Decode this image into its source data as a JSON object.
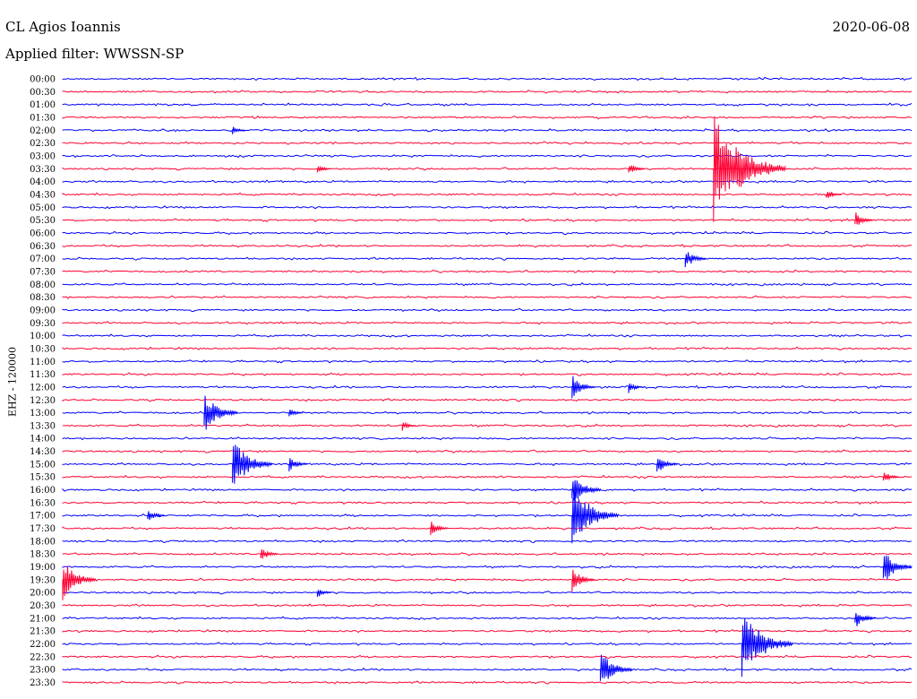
{
  "header": {
    "station": "CL Agios Ioannis",
    "filter": "Applied filter: WWSSN-SP",
    "date": "2020-06-08",
    "channel": "EHZ - 120000"
  },
  "colors": {
    "blue": "#0000ff",
    "red": "#ff0033"
  },
  "chart_data": {
    "type": "line",
    "title": "CL Agios Ioannis",
    "subtitle": "Applied filter: WWSSN-SP",
    "date": "2020-06-08",
    "ylabel": "EHZ - 120000",
    "xlabel": "",
    "series_colors_alternate": [
      "blue",
      "red"
    ],
    "rows": [
      "00:00",
      "00:30",
      "01:00",
      "01:30",
      "02:00",
      "02:30",
      "03:00",
      "03:30",
      "04:00",
      "04:30",
      "05:00",
      "05:30",
      "06:00",
      "06:30",
      "07:00",
      "07:30",
      "08:00",
      "08:30",
      "09:00",
      "09:30",
      "10:00",
      "10:30",
      "11:00",
      "11:30",
      "12:00",
      "12:30",
      "13:00",
      "13:30",
      "14:00",
      "14:30",
      "15:00",
      "15:30",
      "16:00",
      "16:30",
      "17:00",
      "17:30",
      "18:00",
      "18:30",
      "19:00",
      "19:30",
      "20:00",
      "20:30",
      "21:00",
      "21:30",
      "22:00",
      "22:30",
      "23:00",
      "23:30"
    ],
    "events": [
      {
        "row": 4,
        "minute": 6,
        "amp": 5
      },
      {
        "row": 7,
        "minute": 9,
        "amp": 6
      },
      {
        "row": 7,
        "minute": 20,
        "amp": 8
      },
      {
        "row": 7,
        "minute": 23,
        "amp": 60
      },
      {
        "row": 9,
        "minute": 27,
        "amp": 7
      },
      {
        "row": 11,
        "minute": 28,
        "amp": 10
      },
      {
        "row": 14,
        "minute": 22,
        "amp": 12
      },
      {
        "row": 24,
        "minute": 18,
        "amp": 14
      },
      {
        "row": 24,
        "minute": 20,
        "amp": 7
      },
      {
        "row": 26,
        "minute": 5,
        "amp": 24
      },
      {
        "row": 26,
        "minute": 8,
        "amp": 6
      },
      {
        "row": 27,
        "minute": 12,
        "amp": 6
      },
      {
        "row": 30,
        "minute": 6,
        "amp": 30
      },
      {
        "row": 30,
        "minute": 8,
        "amp": 10
      },
      {
        "row": 30,
        "minute": 21,
        "amp": 12
      },
      {
        "row": 31,
        "minute": 29,
        "amp": 8
      },
      {
        "row": 32,
        "minute": 18,
        "amp": 20
      },
      {
        "row": 34,
        "minute": 18,
        "amp": 36
      },
      {
        "row": 34,
        "minute": 3,
        "amp": 9
      },
      {
        "row": 35,
        "minute": 13,
        "amp": 10
      },
      {
        "row": 37,
        "minute": 7,
        "amp": 9
      },
      {
        "row": 38,
        "minute": 29,
        "amp": 20
      },
      {
        "row": 39,
        "minute": 0,
        "amp": 24
      },
      {
        "row": 39,
        "minute": 18,
        "amp": 14
      },
      {
        "row": 40,
        "minute": 9,
        "amp": 6
      },
      {
        "row": 42,
        "minute": 28,
        "amp": 12
      },
      {
        "row": 44,
        "minute": 24,
        "amp": 40
      },
      {
        "row": 46,
        "minute": 19,
        "amp": 22
      }
    ]
  }
}
